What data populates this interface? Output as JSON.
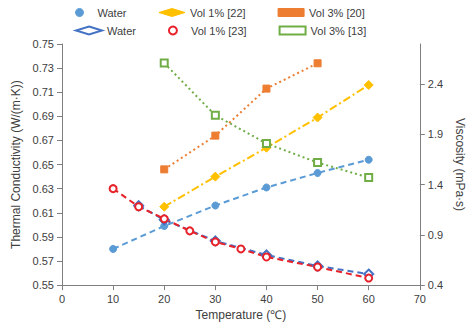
{
  "chart_data": {
    "type": "line",
    "xlabel": "Temperature (℃)",
    "ylabel": "Thermal Conductivity (W/(m·K))",
    "y2label": "Viscosity (mPa·s)",
    "xlim": [
      0,
      70
    ],
    "xticks": [
      0,
      10,
      20,
      30,
      40,
      50,
      60,
      70
    ],
    "ylim": [
      0.55,
      0.75
    ],
    "yticks": [
      0.55,
      0.57,
      0.59,
      0.61,
      0.63,
      0.65,
      0.67,
      0.69,
      0.71,
      0.73,
      0.75
    ],
    "y2lim": [
      0.4,
      2.8
    ],
    "y2ticks": [
      0.4,
      0.9,
      1.4,
      1.9,
      2.4
    ],
    "grid": false,
    "legend": "top",
    "series": [
      {
        "name": "Water",
        "color": "#5B9BD5",
        "marker": "circle",
        "line_style": "dashed",
        "axis": "y",
        "x": [
          10,
          20,
          30,
          40,
          50,
          60
        ],
        "values": [
          0.58,
          0.599,
          0.616,
          0.631,
          0.643,
          0.654
        ]
      },
      {
        "name": "Vol 1% [22]",
        "color": "#FFC000",
        "marker": "diamond",
        "line_style": "dashdot",
        "axis": "y",
        "x": [
          20,
          30,
          40,
          50,
          60
        ],
        "values": [
          0.615,
          0.64,
          0.664,
          0.689,
          0.716
        ]
      },
      {
        "name": "Vol 3% [20]",
        "color": "#ED7D31",
        "marker": "square",
        "line_style": "dotted",
        "axis": "y",
        "x": [
          20,
          30,
          40,
          50
        ],
        "values": [
          0.646,
          0.674,
          0.713,
          0.734
        ]
      },
      {
        "name": "Water",
        "color": "#4472C4",
        "marker": "diamond-open",
        "line_style": "dashed",
        "axis": "y2",
        "x": [
          15,
          20,
          30,
          40,
          50,
          60
        ],
        "values": [
          1.19,
          1.05,
          0.84,
          0.7,
          0.59,
          0.51
        ]
      },
      {
        "name": "Vol 1% [23]",
        "color": "#E8222A",
        "marker": "circle-open",
        "line_style": "dashed",
        "axis": "y2",
        "x": [
          10,
          15,
          20,
          25,
          30,
          35,
          40,
          50,
          60
        ],
        "values": [
          1.36,
          1.18,
          1.06,
          0.94,
          0.83,
          0.76,
          0.68,
          0.58,
          0.47
        ]
      },
      {
        "name": "Vol 3% [13]",
        "color": "#70AD47",
        "marker": "square-open",
        "line_style": "dotted",
        "axis": "y2",
        "x": [
          20,
          30,
          40,
          50,
          60
        ],
        "values": [
          2.61,
          2.09,
          1.81,
          1.62,
          1.47
        ]
      }
    ]
  }
}
